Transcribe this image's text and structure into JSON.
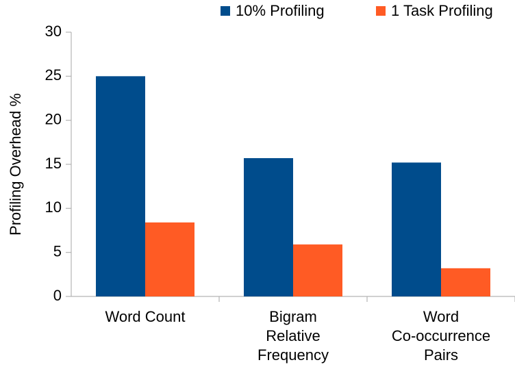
{
  "chart_data": {
    "type": "bar",
    "y_label": "Profiling Overhead %",
    "categories": [
      [
        "Word Count"
      ],
      [
        "Bigram",
        "Relative",
        "Frequency"
      ],
      [
        "Word",
        "Co-occurrence",
        "Pairs"
      ]
    ],
    "series": [
      {
        "name": "10% Profiling",
        "color": "#004c8c",
        "values": [
          25,
          15.7,
          15.2
        ]
      },
      {
        "name": "1 Task Profiling",
        "color": "#ff5b24",
        "values": [
          8.4,
          5.9,
          3.2
        ]
      }
    ],
    "ylim": [
      0,
      30
    ],
    "yticks": [
      0,
      5,
      10,
      15,
      20,
      25,
      30
    ],
    "grid": false,
    "legend": "top"
  }
}
